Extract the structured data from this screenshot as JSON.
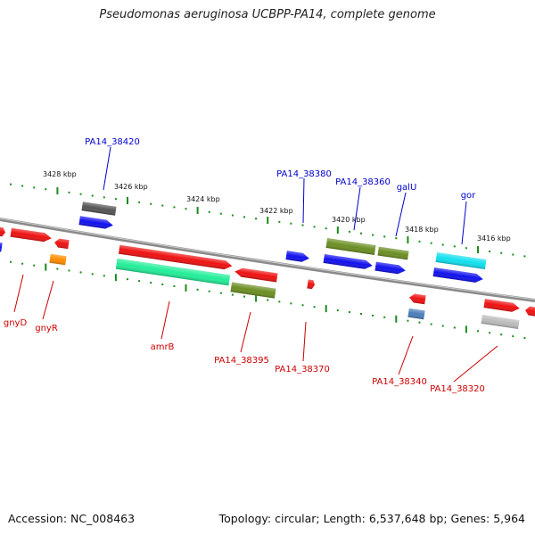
{
  "title": "Pseudomonas aeruginosa UCBPP-PA14, complete genome",
  "footer": {
    "accession": "Accession: NC_008463",
    "topology": "Topology: circular; Length: 6,537,648 bp; Genes: 5,964"
  },
  "colors": {
    "blue_label": "#0000cc",
    "red_label": "#cc0000",
    "tick": "#1a8a1a",
    "backbone": "#8a8a8a",
    "red": "#ee1111",
    "blue": "#1111ee",
    "olive": "#6b8e23",
    "mint": "#22ee99",
    "cyan": "#11e0ee",
    "grey_dark": "#555555",
    "grey_light": "#bbbbbb",
    "orange": "#ff8c00",
    "steel": "#4a7eb8"
  },
  "kbp_labels": [
    "3428 kbp",
    "3426 kbp",
    "3424 kbp",
    "3422 kbp",
    "3420 kbp",
    "3418 kbp",
    "3416 kbp"
  ],
  "top_gene_labels": [
    "PA14_38420",
    "PA14_38380",
    "PA14_38360",
    "galU",
    "gor"
  ],
  "bottom_gene_labels": [
    "gnyD",
    "gnyR",
    "amrB",
    "PA14_38395",
    "PA14_38370",
    "PA14_38340",
    "PA14_38320"
  ]
}
